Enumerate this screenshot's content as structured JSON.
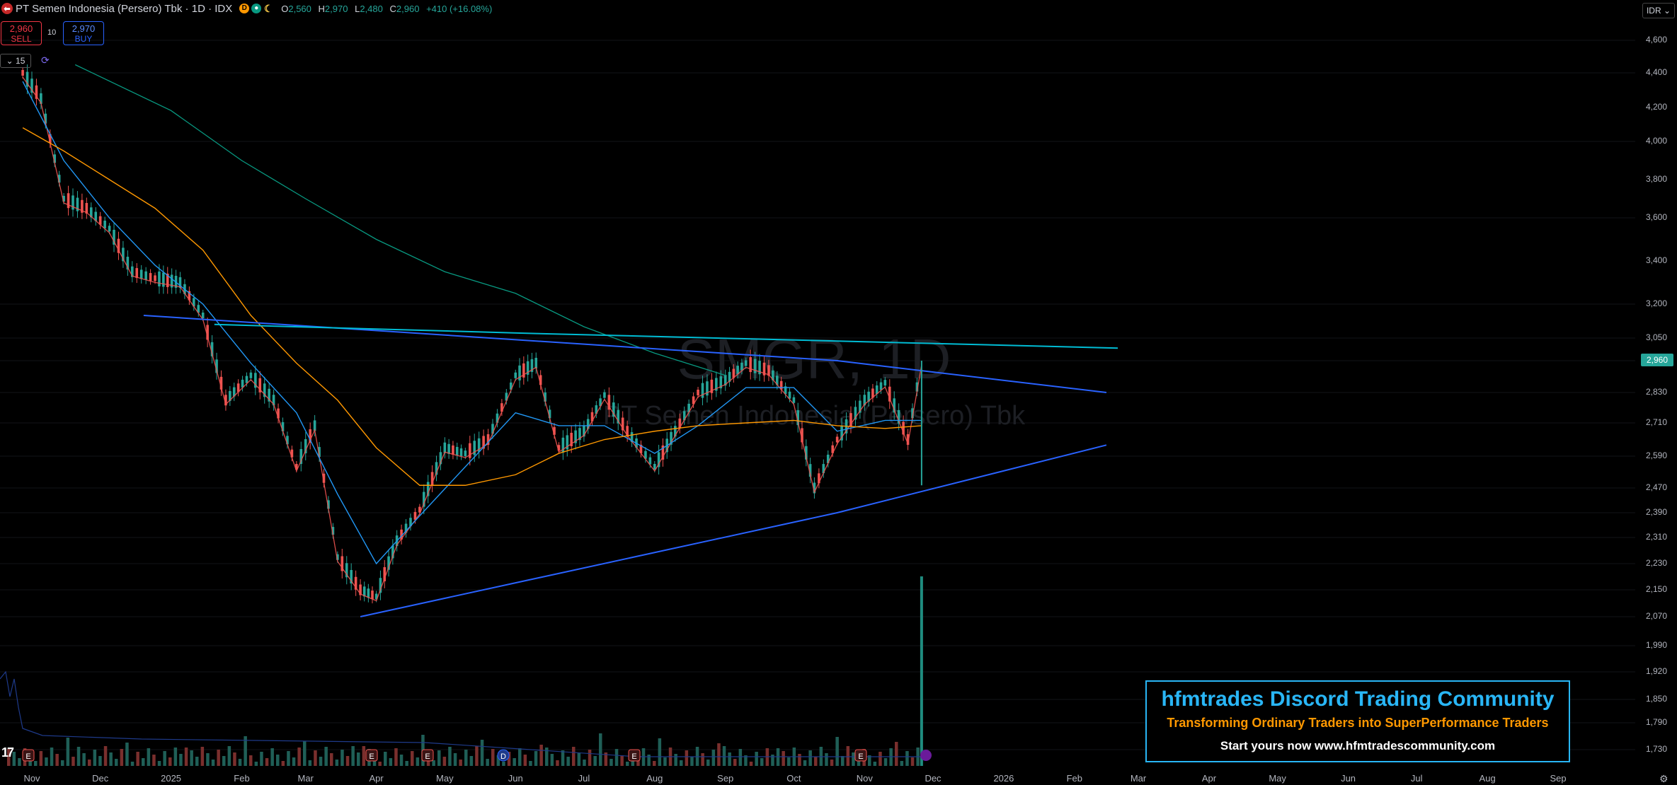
{
  "header": {
    "logo_glyph": "⬅",
    "title": "PT Semen Indonesia (Persero) Tbk · 1D · IDX",
    "badges": [
      {
        "glyph": "D",
        "color": "#ff9800"
      },
      {
        "glyph": "●",
        "color": "#089981"
      },
      {
        "glyph": "☾",
        "color": "#f7c948"
      }
    ],
    "ohlc": {
      "o_label": "O",
      "o": "2,560",
      "h_label": "H",
      "h": "2,970",
      "l_label": "L",
      "l": "2,480",
      "c_label": "C",
      "c": "2,960",
      "change": "+410 (+16.08%)"
    }
  },
  "trade": {
    "sell_price": "2,960",
    "sell_label": "SELL",
    "spread": "10",
    "buy_price": "2,970",
    "buy_label": "BUY"
  },
  "interval": "15",
  "currency": "IDR",
  "watermark": {
    "symbol": "SMGR, 1D",
    "name": "PT Semen Indonesia (Persero) Tbk"
  },
  "price_axis": [
    "4,600",
    "4,400",
    "4,200",
    "4,000",
    "3,800",
    "3,600",
    "3,400",
    "3,200",
    "3,050",
    "2,830",
    "2,710",
    "2,590",
    "2,470",
    "2,390",
    "2,310",
    "2,230",
    "2,150",
    "2,070",
    "1,990",
    "1,920",
    "1,850",
    "1,790",
    "1,730"
  ],
  "last_price": "2,960",
  "time_axis": [
    "Nov",
    "Dec",
    "2025",
    "Feb",
    "Mar",
    "Apr",
    "May",
    "Jun",
    "Jul",
    "Aug",
    "Sep",
    "Oct",
    "Nov",
    "Dec",
    "2026",
    "Feb",
    "Mar",
    "Apr",
    "May",
    "Jun",
    "Jul",
    "Aug",
    "Sep"
  ],
  "event_markers": [
    "E",
    "E",
    "E",
    "D",
    "E",
    "E"
  ],
  "banner": {
    "title": "hfmtrades Discord Trading Community",
    "subtitle": "Transforming Ordinary Traders into SuperPerformance Traders",
    "cta": "Start yours now www.hfmtradescommunity.com"
  },
  "tv_logo": "17",
  "colors": {
    "up": "#26a69a",
    "down": "#ef5350",
    "ma_fast": "#ef5350",
    "ma_mid": "#2196f3",
    "ma_slow": "#ff9800",
    "ma_long": "#089981",
    "trendline": "#2962ff",
    "resistance": "#00bcd4",
    "banner_border": "#29b6f6",
    "banner_sub": "#ff9800"
  },
  "chart_data": {
    "type": "line",
    "title": "PT Semen Indonesia (Persero) Tbk · 1D · IDX",
    "xlabel": "",
    "ylabel": "",
    "ylim": [
      1700,
      4650
    ],
    "series": [
      {
        "x": [
          "2024-10-28",
          "2024-11-05",
          "2024-11-15",
          "2024-11-25",
          "2024-12-05",
          "2024-12-15",
          "2024-12-25",
          "2025-01-05",
          "2025-01-15",
          "2025-01-25",
          "2025-02-05",
          "2025-02-15",
          "2025-02-25",
          "2025-03-05",
          "2025-03-15",
          "2025-03-25",
          "2025-04-01",
          "2025-04-10",
          "2025-04-20",
          "2025-05-01",
          "2025-05-10",
          "2025-05-20",
          "2025-06-01",
          "2025-06-10",
          "2025-06-20",
          "2025-07-01",
          "2025-07-10",
          "2025-07-20",
          "2025-08-01",
          "2025-08-10",
          "2025-08-20",
          "2025-09-01",
          "2025-09-10",
          "2025-09-20",
          "2025-10-01",
          "2025-10-10",
          "2025-10-20",
          "2025-11-01",
          "2025-11-10",
          "2025-11-20",
          "2025-11-26"
        ],
        "values": [
          4400,
          4250,
          3700,
          3650,
          3550,
          3350,
          3320,
          3300,
          3150,
          2800,
          2900,
          2800,
          2550,
          2700,
          2250,
          2150,
          2130,
          2300,
          2400,
          2620,
          2600,
          2650,
          2900,
          2950,
          2620,
          2680,
          2820,
          2680,
          2550,
          2680,
          2830,
          2880,
          2950,
          2920,
          2800,
          2470,
          2650,
          2800,
          2870,
          2650,
          2960
        ]
      },
      {
        "x": [
          "2024-10-28",
          "2024-11-15",
          "2024-12-05",
          "2024-12-25",
          "2025-01-15",
          "2025-02-05",
          "2025-02-25",
          "2025-03-15",
          "2025-04-01",
          "2025-04-20",
          "2025-05-10",
          "2025-06-01",
          "2025-06-20",
          "2025-07-10",
          "2025-08-01",
          "2025-08-20",
          "2025-09-10",
          "2025-10-01",
          "2025-10-20",
          "2025-11-10",
          "2025-11-26"
        ],
        "values": [
          4350,
          3900,
          3600,
          3380,
          3200,
          2950,
          2750,
          2450,
          2230,
          2380,
          2550,
          2750,
          2700,
          2700,
          2600,
          2700,
          2850,
          2850,
          2680,
          2720,
          2720
        ]
      },
      {
        "x": [
          "2024-10-28",
          "2024-11-15",
          "2024-12-05",
          "2024-12-25",
          "2025-01-15",
          "2025-02-05",
          "2025-02-25",
          "2025-03-15",
          "2025-04-01",
          "2025-04-20",
          "2025-05-10",
          "2025-06-01",
          "2025-06-20",
          "2025-07-10",
          "2025-08-01",
          "2025-08-20",
          "2025-09-10",
          "2025-10-01",
          "2025-10-20",
          "2025-11-10",
          "2025-11-26"
        ],
        "values": [
          4080,
          3950,
          3800,
          3650,
          3450,
          3150,
          2950,
          2800,
          2620,
          2480,
          2480,
          2520,
          2600,
          2650,
          2680,
          2700,
          2710,
          2720,
          2700,
          2690,
          2700
        ]
      },
      {
        "x": [
          "2024-11-20",
          "2025-01-01",
          "2025-02-01",
          "2025-03-01",
          "2025-04-01",
          "2025-05-01",
          "2025-06-01",
          "2025-07-01",
          "2025-08-01",
          "2025-09-01"
        ],
        "values": [
          4450,
          4180,
          3900,
          3700,
          3500,
          3350,
          3250,
          3100,
          2990,
          2900
        ]
      },
      {
        "x": [
          "2024-12-20",
          "2025-10-20",
          "2026-02-15"
        ],
        "values": [
          3150,
          2960,
          2830
        ]
      },
      {
        "x": [
          "2025-01-20",
          "2025-06-10",
          "2026-02-20"
        ],
        "values": [
          3110,
          3070,
          3010
        ]
      },
      {
        "x": [
          "2025-03-25",
          "2025-10-20",
          "2026-02-15"
        ],
        "values": [
          2070,
          2390,
          2630
        ]
      }
    ]
  }
}
